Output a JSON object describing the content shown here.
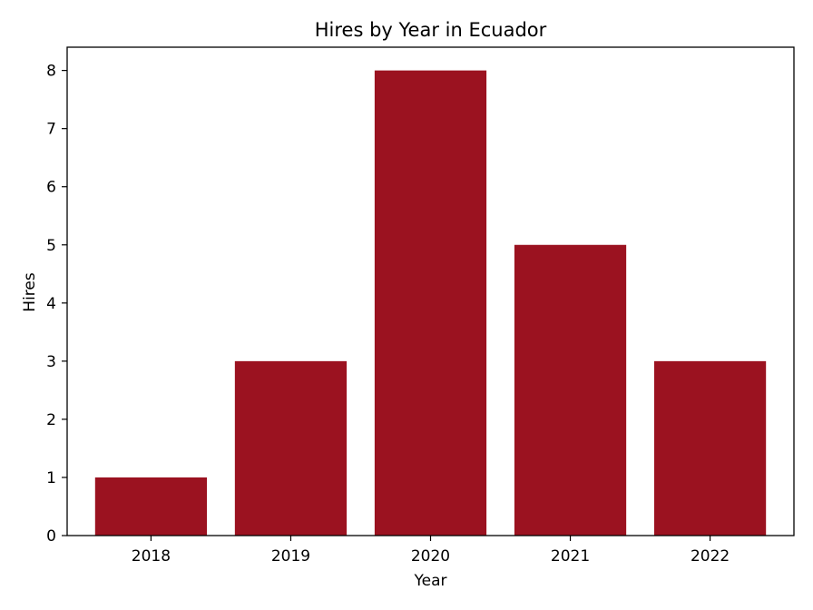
{
  "chart_data": {
    "type": "bar",
    "title": "Hires by Year in Ecuador",
    "xlabel": "Year",
    "ylabel": "Hires",
    "categories": [
      "2018",
      "2019",
      "2020",
      "2021",
      "2022"
    ],
    "values": [
      1,
      3,
      8,
      5,
      3
    ],
    "ylim": [
      0,
      8.4
    ],
    "yticks": [
      0,
      1,
      2,
      3,
      4,
      5,
      6,
      7,
      8
    ],
    "grid": false,
    "legend": "none",
    "bar_color": "#9b1220"
  }
}
